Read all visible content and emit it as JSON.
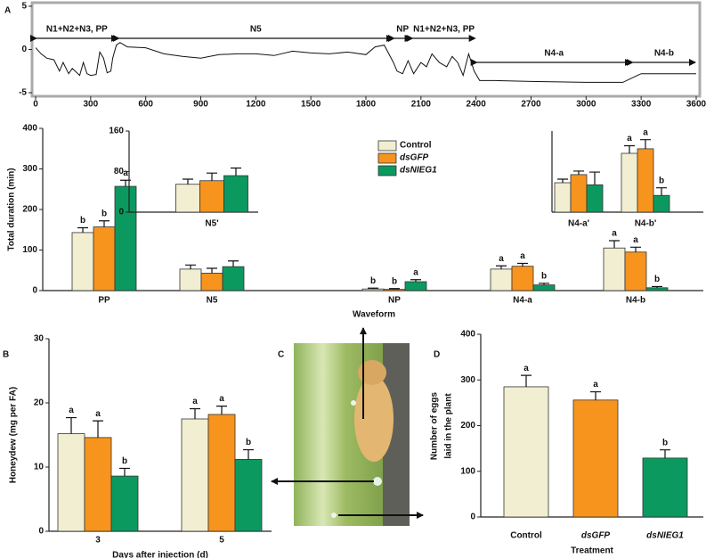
{
  "chart_data": [
    {
      "type": "line",
      "panel": "A",
      "x": [
        0,
        30,
        60,
        100,
        130,
        150,
        180,
        200,
        240,
        260,
        280,
        300,
        330,
        350,
        370,
        390,
        410,
        420,
        440,
        460,
        500,
        600,
        700,
        800,
        900,
        1000,
        1100,
        1200,
        1300,
        1400,
        1500,
        1600,
        1700,
        1800,
        1850,
        1900,
        1950,
        1970,
        2000,
        2030,
        2060,
        2100,
        2130,
        2160,
        2200,
        2240,
        2270,
        2300,
        2330,
        2360,
        2390,
        2420,
        2500,
        2700,
        3000,
        3200,
        3280,
        3300,
        3600
      ],
      "series": [
        {
          "color": "#111111",
          "values": [
            0.2,
            -0.5,
            -1,
            -1.2,
            -2.5,
            -1.5,
            -2.8,
            -2.2,
            -3,
            -1.5,
            -2.8,
            -3,
            -2.9,
            -0.3,
            -1,
            -2.7,
            -2.5,
            -1,
            0.5,
            0.8,
            0.3,
            0.2,
            -0.5,
            -0.8,
            -1,
            -0.6,
            -0.5,
            -0.5,
            -0.7,
            -0.2,
            -0.4,
            -0.5,
            -0.3,
            -0.6,
            0.3,
            0.5,
            -1.5,
            -2.5,
            -2.8,
            -1.3,
            -2.8,
            -1.5,
            -2,
            -0.5,
            -1.5,
            -2,
            -0.8,
            -1.5,
            -3,
            -0.5,
            -2.5,
            -3.6,
            -3.6,
            -3.7,
            -3.8,
            -3.8,
            -3,
            -2.8,
            -2.8
          ]
        }
      ],
      "xlim": [
        0,
        3600
      ],
      "xticks": [
        0,
        300,
        600,
        900,
        1200,
        1500,
        1800,
        2100,
        2400,
        2700,
        3000,
        3300,
        3600
      ],
      "ylim": [
        -5,
        5
      ],
      "yticks": [
        -5,
        0,
        5
      ],
      "segments": [
        {
          "label": "N1+N2+N3, PP",
          "start": 0,
          "end": 450
        },
        {
          "label": "N5",
          "start": 450,
          "end": 1950
        },
        {
          "label": "NP",
          "start": 1950,
          "end": 2050
        },
        {
          "label": "N1+N2+N3, PP",
          "start": 2050,
          "end": 2400
        },
        {
          "label": "N4-a",
          "start": 2400,
          "end": 3250
        },
        {
          "label": "N4-b",
          "start": 3250,
          "end": 3600
        }
      ]
    },
    {
      "type": "bar",
      "ylabel": "Total duration (min)",
      "xlabel": "Waveform",
      "categories": [
        "PP",
        "N5",
        "NP",
        "N4-a",
        "N4-b"
      ],
      "ylim": [
        0,
        400
      ],
      "yticks": [
        0,
        100,
        200,
        300,
        400
      ],
      "series": [
        {
          "name": "Control",
          "color": "#f2eed2",
          "values": [
            143,
            53,
            4,
            53,
            105
          ],
          "errors": [
            12,
            10,
            2,
            8,
            18
          ],
          "letters": [
            "b",
            null,
            "b",
            "a",
            "a"
          ]
        },
        {
          "name": "dsGFP",
          "color": "#f7941d",
          "values": [
            157,
            43,
            3,
            60,
            95
          ],
          "errors": [
            15,
            12,
            2,
            7,
            12
          ],
          "letters": [
            "b",
            null,
            "b",
            "a",
            "a"
          ]
        },
        {
          "name": "dsNIEG1",
          "color": "#0b9960",
          "values": [
            257,
            59,
            22,
            14,
            7
          ],
          "errors": [
            15,
            14,
            5,
            4,
            3
          ],
          "letters": [
            "a",
            null,
            "a",
            "b",
            "b"
          ]
        }
      ]
    },
    {
      "type": "bar",
      "categories": [
        "N5'"
      ],
      "ylim": [
        0,
        160
      ],
      "yticks": [
        0,
        80,
        160
      ],
      "series": [
        {
          "color": "#f2eed2",
          "values": [
            55
          ],
          "errors": [
            10
          ],
          "letters": [
            null
          ]
        },
        {
          "color": "#f7941d",
          "values": [
            62
          ],
          "errors": [
            15
          ],
          "letters": [
            null
          ]
        },
        {
          "color": "#0b9960",
          "values": [
            72
          ],
          "errors": [
            15
          ],
          "letters": [
            null
          ]
        }
      ]
    },
    {
      "type": "bar",
      "categories": [
        "N4-a'",
        "N4-b'"
      ],
      "ylim": [
        0,
        160
      ],
      "series": [
        {
          "color": "#f2eed2",
          "values": [
            58,
            116
          ],
          "errors": [
            7,
            15
          ],
          "letters": [
            null,
            "a"
          ]
        },
        {
          "color": "#f7941d",
          "values": [
            74,
            125
          ],
          "errors": [
            7,
            18
          ],
          "letters": [
            null,
            "a"
          ]
        },
        {
          "color": "#0b9960",
          "values": [
            54,
            33
          ],
          "errors": [
            25,
            15
          ],
          "letters": [
            null,
            "b"
          ]
        }
      ]
    },
    {
      "type": "bar",
      "panel": "B",
      "ylabel": "Honeydew (mg per FA)",
      "xlabel": "Days after injection (d)",
      "categories": [
        "3",
        "5"
      ],
      "ylim": [
        0,
        30
      ],
      "yticks": [
        0,
        10,
        20,
        30
      ],
      "series": [
        {
          "color": "#f2eed2",
          "values": [
            15.2,
            17.5
          ],
          "errors": [
            2.5,
            1.6
          ],
          "letters": [
            "a",
            "a"
          ]
        },
        {
          "color": "#f7941d",
          "values": [
            14.6,
            18.2
          ],
          "errors": [
            2.6,
            1.3
          ],
          "letters": [
            "a",
            "a"
          ]
        },
        {
          "color": "#0b9960",
          "values": [
            8.6,
            11.2
          ],
          "errors": [
            1.2,
            1.5
          ],
          "letters": [
            "b",
            "b"
          ]
        }
      ]
    },
    {
      "type": "bar",
      "panel": "D",
      "ylabel": [
        "Number of eggs",
        "laid in the plant"
      ],
      "xlabel": "Treatment",
      "categories": [
        "Control",
        "dsGFP",
        "dsNIEG1"
      ],
      "ylim": [
        0,
        400
      ],
      "yticks": [
        0,
        100,
        200,
        300,
        400
      ],
      "series": [
        {
          "color": [
            "#f2eed2",
            "#f7941d",
            "#0b9960"
          ],
          "values": [
            285,
            256,
            129
          ],
          "errors": [
            25,
            18,
            18
          ],
          "letters": [
            "a",
            "a",
            "b"
          ]
        }
      ]
    }
  ],
  "photo_panel": "C"
}
